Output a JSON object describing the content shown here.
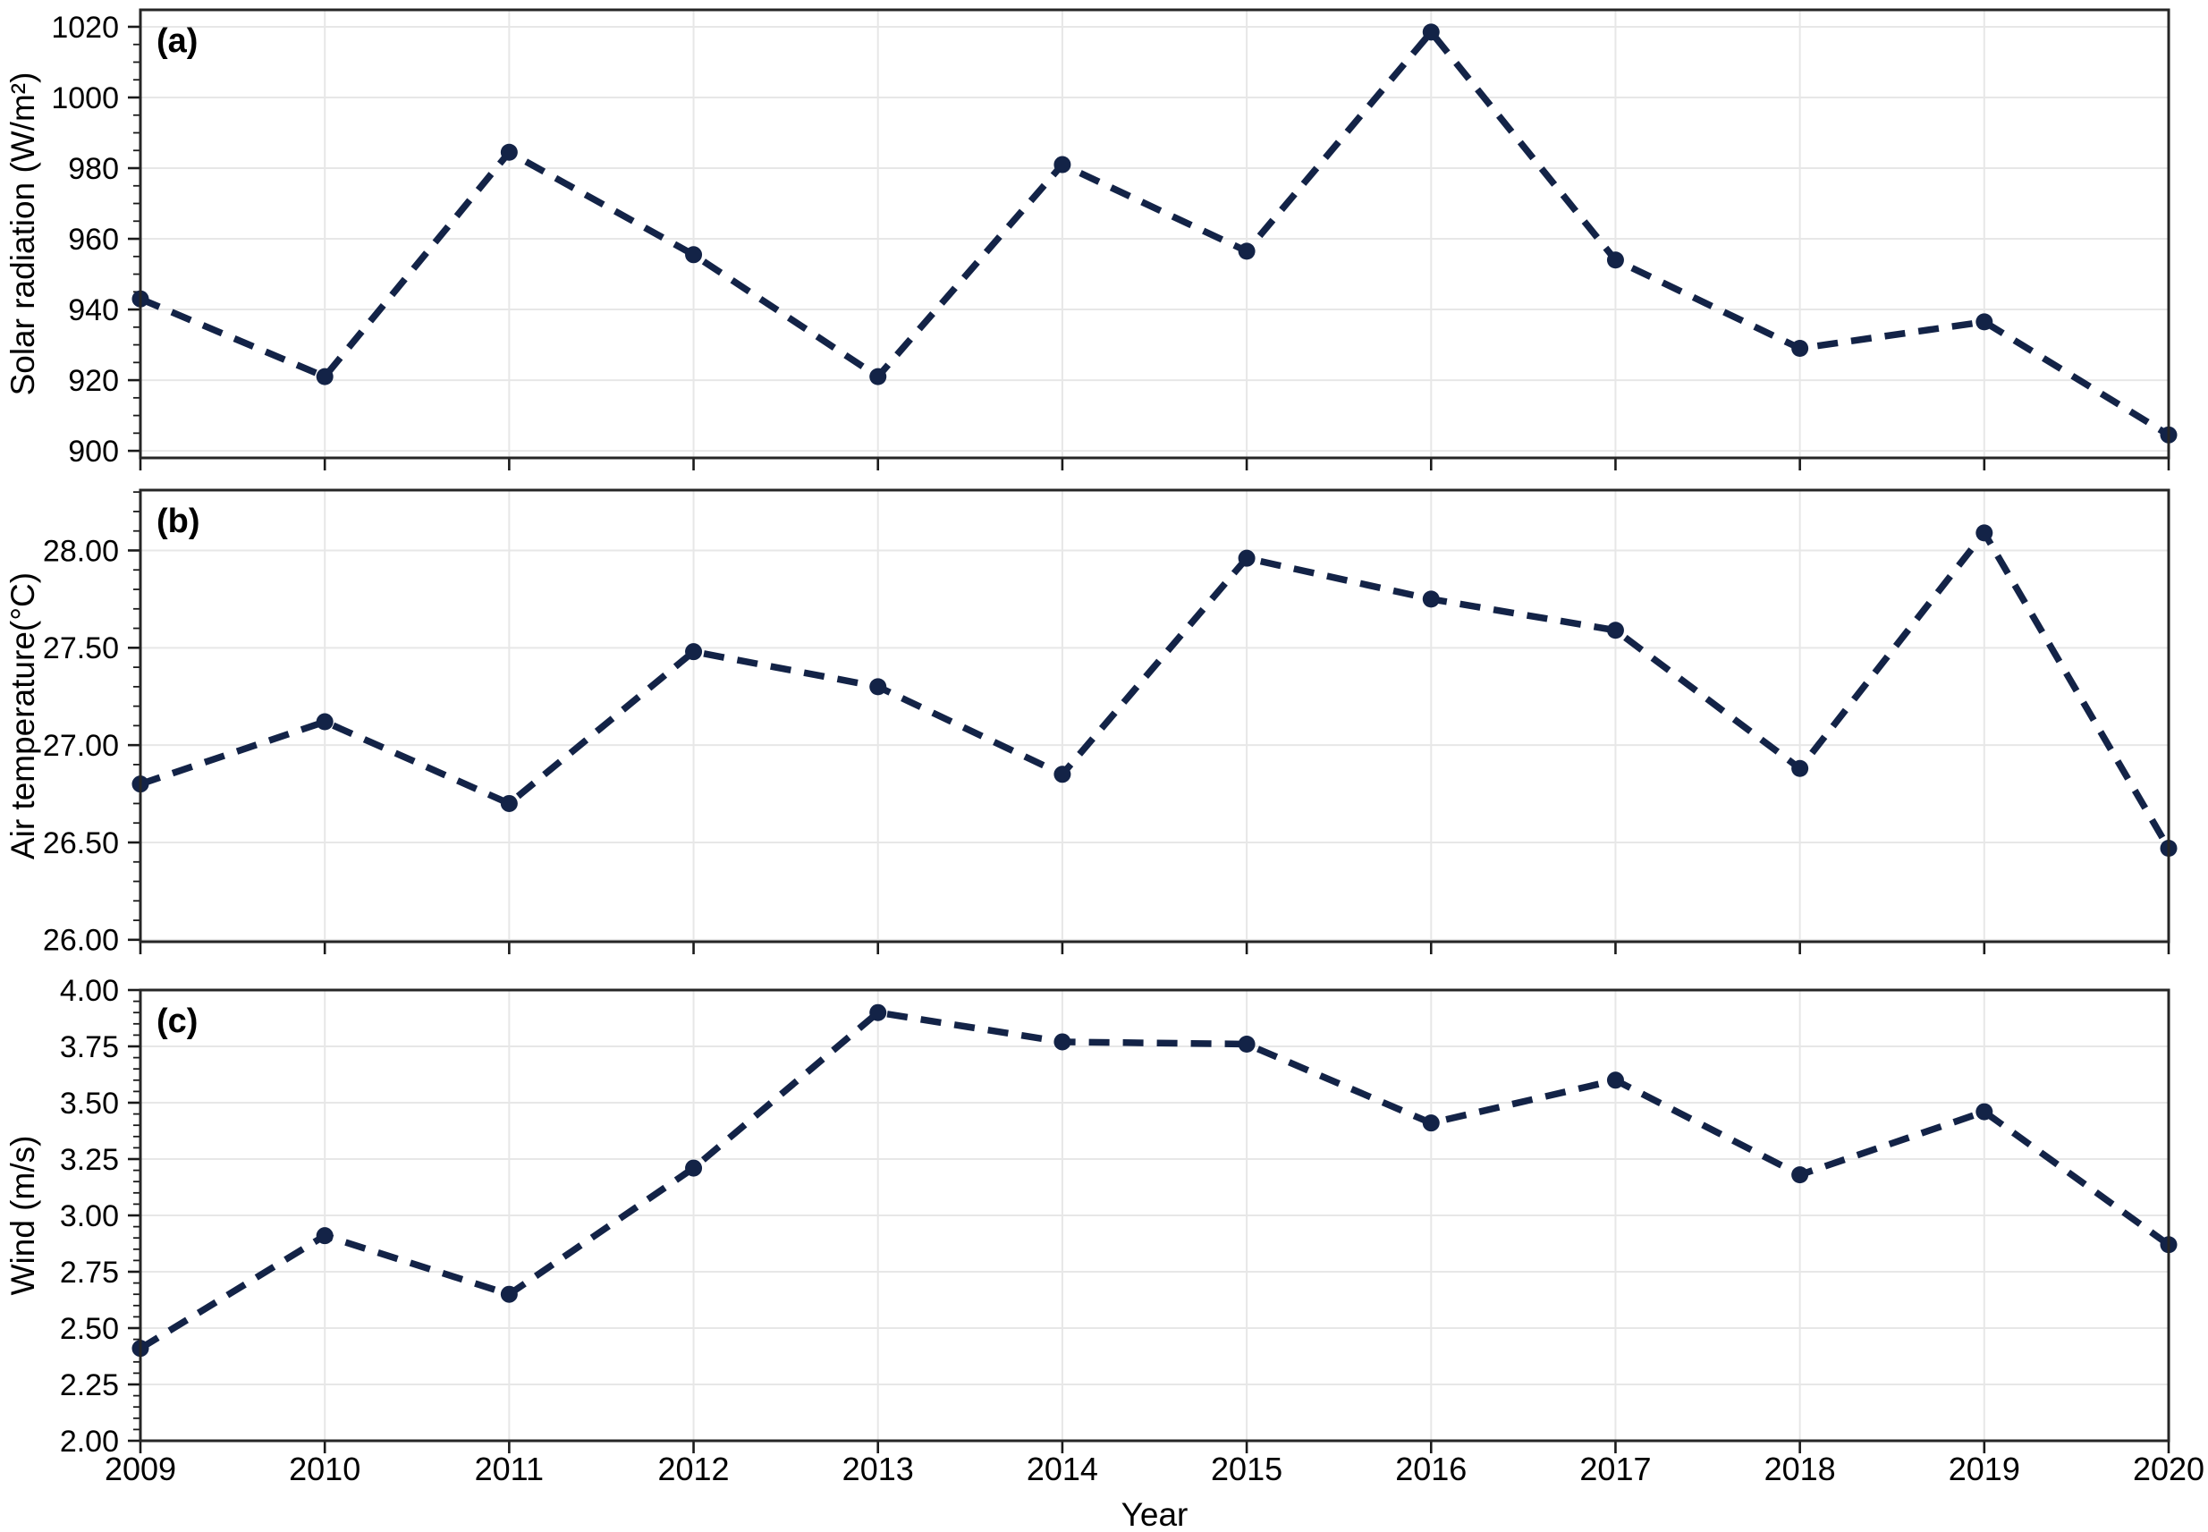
{
  "figure": {
    "xlabel": "Year",
    "background": "#ffffff",
    "colors": {
      "line": "#132347",
      "marker": "#132347",
      "grid": "#e7e7e7",
      "spine": "#262626",
      "tick": "#1a1a1a",
      "text": "#000000"
    }
  },
  "chart_data": [
    {
      "type": "line",
      "panel_label": "(a)",
      "ylabel": "Solar radiation (W/m²)",
      "xlabel": "Year",
      "x": [
        2009,
        2010,
        2011,
        2012,
        2013,
        2014,
        2015,
        2016,
        2017,
        2018,
        2019,
        2020
      ],
      "values": [
        943,
        921,
        984.5,
        955.5,
        921,
        981,
        956.5,
        1018.5,
        954,
        929,
        936.5,
        904.5
      ],
      "yticks": [
        900,
        920,
        940,
        960,
        980,
        1000,
        1020
      ],
      "ytick_labels": [
        "900",
        "920",
        "940",
        "960",
        "980",
        "1000",
        "1020"
      ],
      "ylim": [
        898,
        1024.8
      ],
      "minor_step": 5,
      "line_style": "dashed",
      "marker": "circle",
      "grid": true,
      "show_x_labels": false
    },
    {
      "type": "line",
      "panel_label": "(b)",
      "ylabel": "Air temperature(°C)",
      "xlabel": "Year",
      "x": [
        2009,
        2010,
        2011,
        2012,
        2013,
        2014,
        2015,
        2016,
        2017,
        2018,
        2019,
        2020
      ],
      "values": [
        26.8,
        27.12,
        26.7,
        27.48,
        27.3,
        26.85,
        27.96,
        27.75,
        27.59,
        26.88,
        28.09,
        26.47
      ],
      "yticks": [
        26.0,
        26.5,
        27.0,
        27.5,
        28.0
      ],
      "ytick_labels": [
        "26.00",
        "26.50",
        "27.00",
        "27.50",
        "28.00"
      ],
      "ylim": [
        25.99,
        28.31
      ],
      "minor_step": 0.1,
      "line_style": "dashed",
      "marker": "circle",
      "grid": true,
      "show_x_labels": false
    },
    {
      "type": "line",
      "panel_label": "(c)",
      "ylabel": "Wind (m/s)",
      "xlabel": "Year",
      "x": [
        2009,
        2010,
        2011,
        2012,
        2013,
        2014,
        2015,
        2016,
        2017,
        2018,
        2019,
        2020
      ],
      "values": [
        2.41,
        2.91,
        2.65,
        3.21,
        3.9,
        3.77,
        3.76,
        3.41,
        3.6,
        3.18,
        3.46,
        2.87
      ],
      "yticks": [
        2.0,
        2.25,
        2.5,
        2.75,
        3.0,
        3.25,
        3.5,
        3.75,
        4.0
      ],
      "ytick_labels": [
        "2.00",
        "2.25",
        "2.50",
        "2.75",
        "3.00",
        "3.25",
        "3.50",
        "3.75",
        "4.00"
      ],
      "ylim": [
        2.0,
        4.0
      ],
      "minor_step": 0.05,
      "line_style": "dashed",
      "marker": "circle",
      "grid": true,
      "show_x_labels": true
    }
  ],
  "x_axis": {
    "tick_labels": [
      "2009",
      "2010",
      "2011",
      "2012",
      "2013",
      "2014",
      "2015",
      "2016",
      "2017",
      "2018",
      "2019",
      "2020"
    ]
  }
}
